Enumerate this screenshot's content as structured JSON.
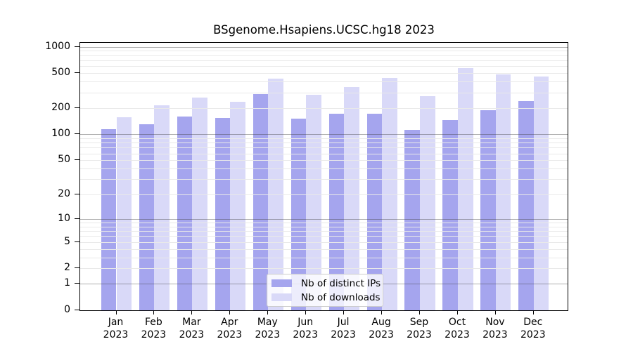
{
  "title": "BSgenome.Hsapiens.UCSC.hg18 2023",
  "chart_data": {
    "type": "bar",
    "title": "BSgenome.Hsapiens.UCSC.hg18 2023",
    "categories": [
      "Jan",
      "Feb",
      "Mar",
      "Apr",
      "May",
      "Jun",
      "Jul",
      "Aug",
      "Sep",
      "Oct",
      "Nov",
      "Dec"
    ],
    "x_year_label": "2023",
    "series": [
      {
        "name": "Nb of distinct IPs",
        "key": "distinct-ips",
        "color": "#a5a5ee",
        "values": [
          114,
          131,
          160,
          153,
          291,
          150,
          171,
          172,
          112,
          146,
          190,
          242
        ]
      },
      {
        "name": "Nb of downloads",
        "key": "downloads",
        "color": "#d9d9f8",
        "values": [
          158,
          214,
          261,
          236,
          435,
          285,
          346,
          438,
          274,
          570,
          482,
          458
        ]
      }
    ],
    "scale": "log1p",
    "ylim": [
      0,
      1108
    ],
    "yticks": [
      0,
      1,
      2,
      5,
      10,
      20,
      50,
      100,
      200,
      500,
      1000
    ],
    "grid_major": [
      1,
      10,
      100,
      1000
    ],
    "grid_minor": [
      2,
      3,
      4,
      5,
      6,
      7,
      8,
      9,
      20,
      30,
      40,
      50,
      60,
      70,
      80,
      90,
      200,
      300,
      400,
      500,
      600,
      700,
      800,
      900
    ],
    "grid_on": true,
    "legend_position": "bottom-center",
    "xlabel": "",
    "ylabel": ""
  },
  "colors": {
    "background": "#ffffff",
    "spine": "#000000",
    "grid_minor": "#e9e9e9",
    "grid_major_rgba": "rgba(60,60,60,0.42)"
  }
}
